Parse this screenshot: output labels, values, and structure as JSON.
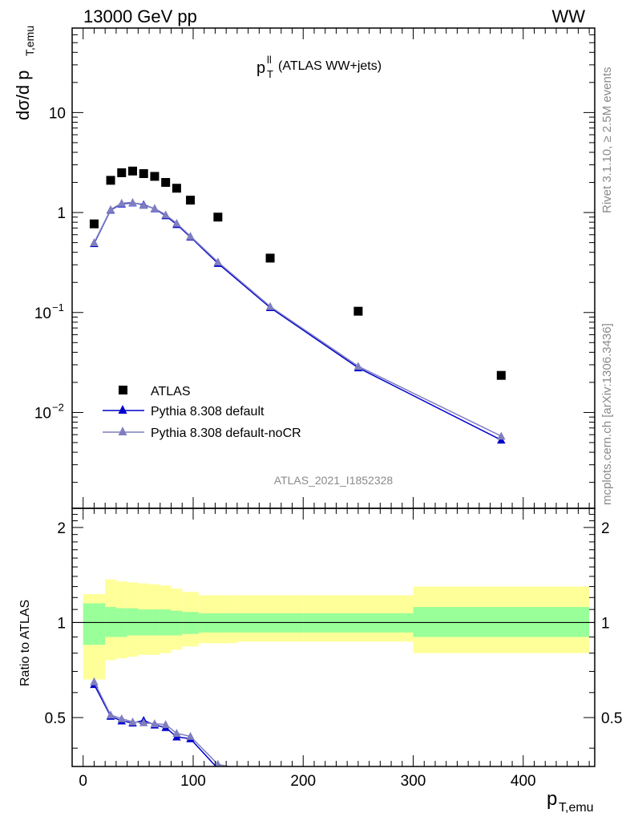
{
  "header": {
    "energy_label": "13000 GeV pp",
    "process_label": "WW"
  },
  "plot_title": {
    "main": "p",
    "sup": "ll",
    "sub": "T",
    "rest": " (ATLAS WW+jets)"
  },
  "analysis_id": "ATLAS_2021_I1852328",
  "side_labels": {
    "rivet": "Rivet 3.1.10, ≥ 2.5M events",
    "mcplots": "mcplots.cern.ch [arXiv:1306.3436]"
  },
  "axes": {
    "top_ylabel": "dσ/d p",
    "top_ylabel_sub": "T,emu",
    "bottom_ylabel": "Ratio to ATLAS",
    "xlabel": "p",
    "xlabel_sub": "T,emu",
    "top_ytick_labels": [
      "10",
      "1",
      "10",
      "10"
    ],
    "top_ytick_exps": [
      "",
      "",
      "−1",
      "−2"
    ],
    "ratio_ytick_labels": [
      "2",
      "1",
      "0.5"
    ],
    "xtick_labels": [
      "0",
      "100",
      "200",
      "300",
      "400"
    ]
  },
  "legend": {
    "atlas": "ATLAS",
    "default": "Pythia 8.308 default",
    "nocr": "Pythia 8.308 default-noCR"
  },
  "colors": {
    "atlas": "#000000",
    "default": "#0000cc",
    "nocr": "#7f7fbf",
    "band_inner": "#99ff99",
    "band_outer": "#ffff99"
  },
  "chart_data": {
    "type": "scatter",
    "x_range": [
      -10,
      465
    ],
    "y_log": true,
    "y_range": [
      0.0011,
      70
    ],
    "ratio_range": [
      0.35,
      2.3
    ],
    "bins": [
      {
        "lo": 0,
        "hi": 20,
        "x": 10,
        "atlas": 0.77,
        "default": 0.49,
        "nocr": 0.5,
        "stat_lo": 0.85,
        "stat_hi": 1.15,
        "tot_lo": 0.66,
        "tot_hi": 1.23
      },
      {
        "lo": 20,
        "hi": 30,
        "x": 25,
        "atlas": 2.1,
        "default": 1.06,
        "nocr": 1.07,
        "stat_lo": 0.9,
        "stat_hi": 1.12,
        "tot_lo": 0.76,
        "tot_hi": 1.37
      },
      {
        "lo": 30,
        "hi": 40,
        "x": 35,
        "atlas": 2.5,
        "default": 1.22,
        "nocr": 1.24,
        "stat_lo": 0.9,
        "stat_hi": 1.11,
        "tot_lo": 0.77,
        "tot_hi": 1.35
      },
      {
        "lo": 40,
        "hi": 50,
        "x": 45,
        "atlas": 2.6,
        "default": 1.25,
        "nocr": 1.26,
        "stat_lo": 0.91,
        "stat_hi": 1.11,
        "tot_lo": 0.78,
        "tot_hi": 1.34
      },
      {
        "lo": 50,
        "hi": 60,
        "x": 55,
        "atlas": 2.45,
        "default": 1.2,
        "nocr": 1.18,
        "stat_lo": 0.91,
        "stat_hi": 1.1,
        "tot_lo": 0.79,
        "tot_hi": 1.33
      },
      {
        "lo": 60,
        "hi": 70,
        "x": 65,
        "atlas": 2.3,
        "default": 1.09,
        "nocr": 1.1,
        "stat_lo": 0.91,
        "stat_hi": 1.1,
        "tot_lo": 0.79,
        "tot_hi": 1.32
      },
      {
        "lo": 70,
        "hi": 80,
        "x": 75,
        "atlas": 2.0,
        "default": 0.93,
        "nocr": 0.95,
        "stat_lo": 0.91,
        "stat_hi": 1.1,
        "tot_lo": 0.8,
        "tot_hi": 1.31
      },
      {
        "lo": 80,
        "hi": 90,
        "x": 85,
        "atlas": 1.75,
        "default": 0.76,
        "nocr": 0.78,
        "stat_lo": 0.91,
        "stat_hi": 1.09,
        "tot_lo": 0.82,
        "tot_hi": 1.28
      },
      {
        "lo": 90,
        "hi": 105,
        "x": 97.5,
        "atlas": 1.33,
        "default": 0.57,
        "nocr": 0.58,
        "stat_lo": 0.92,
        "stat_hi": 1.08,
        "tot_lo": 0.84,
        "tot_hi": 1.25
      },
      {
        "lo": 105,
        "hi": 140,
        "x": 122.5,
        "atlas": 0.9,
        "default": 0.31,
        "nocr": 0.32,
        "stat_lo": 0.93,
        "stat_hi": 1.07,
        "tot_lo": 0.86,
        "tot_hi": 1.22
      },
      {
        "lo": 140,
        "hi": 200,
        "x": 170,
        "atlas": 0.35,
        "default": 0.112,
        "nocr": 0.115,
        "stat_lo": 0.93,
        "stat_hi": 1.07,
        "tot_lo": 0.87,
        "tot_hi": 1.22
      },
      {
        "lo": 200,
        "hi": 300,
        "x": 250,
        "atlas": 0.103,
        "default": 0.028,
        "nocr": 0.029,
        "stat_lo": 0.93,
        "stat_hi": 1.07,
        "tot_lo": 0.87,
        "tot_hi": 1.22
      },
      {
        "lo": 300,
        "hi": 460,
        "x": 380,
        "atlas": 0.0235,
        "default": 0.0053,
        "nocr": 0.0058,
        "stat_lo": 0.9,
        "stat_hi": 1.12,
        "tot_lo": 0.8,
        "tot_hi": 1.3
      }
    ]
  }
}
